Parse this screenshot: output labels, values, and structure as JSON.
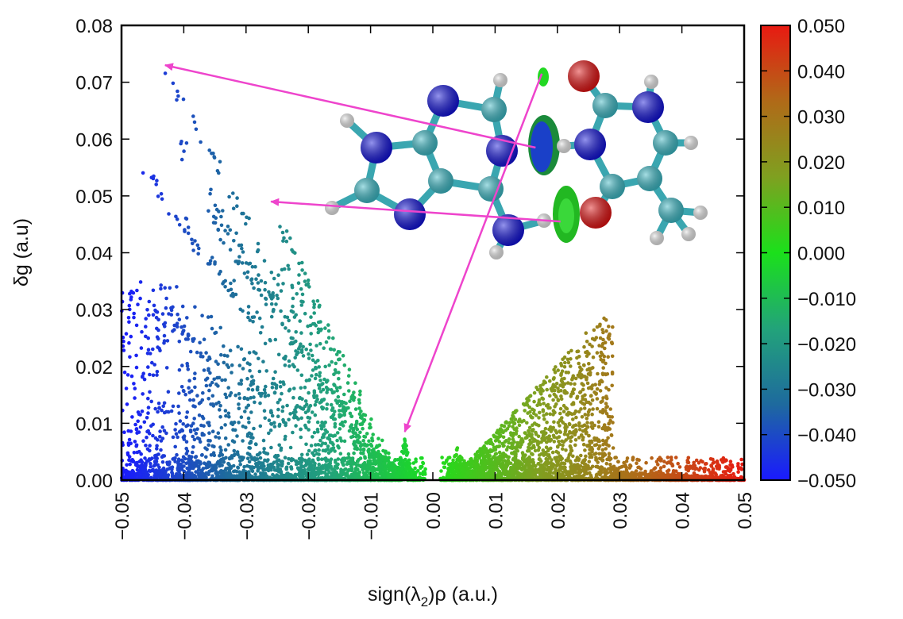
{
  "chart_data": {
    "type": "scatter",
    "title": "",
    "xlabel_prefix": "sign(λ",
    "xlabel_sub": "2",
    "xlabel_suffix": ")ρ (a.u.)",
    "ylabel": "δg (a.u)",
    "xlim": [
      -0.05,
      0.05
    ],
    "ylim": [
      0,
      0.08
    ],
    "x_ticks": [
      "−0.05",
      "−0.04",
      "−0.03",
      "−0.02",
      "−0.01",
      "0.00",
      "0.01",
      "0.02",
      "0.03",
      "0.04",
      "0.05"
    ],
    "x_tick_values": [
      -0.05,
      -0.04,
      -0.03,
      -0.02,
      -0.01,
      0.0,
      0.01,
      0.02,
      0.03,
      0.04,
      0.05
    ],
    "y_ticks": [
      "0.00",
      "0.01",
      "0.02",
      "0.03",
      "0.04",
      "0.05",
      "0.06",
      "0.07",
      "0.08"
    ],
    "y_tick_values": [
      0.0,
      0.01,
      0.02,
      0.03,
      0.04,
      0.05,
      0.06,
      0.07,
      0.08
    ],
    "colorbar": {
      "range": [
        -0.05,
        0.05
      ],
      "tick_values": [
        0.05,
        0.04,
        0.03,
        0.02,
        0.01,
        0.0,
        -0.01,
        -0.02,
        -0.03,
        -0.04,
        -0.05
      ],
      "ticks": [
        "0.050",
        "0.040",
        "0.030",
        "0.020",
        "0.010",
        "0.000",
        "−0.010",
        "−0.020",
        "−0.030",
        "−0.040",
        "−0.050"
      ],
      "colors": [
        "#1a1aff",
        "#1e6a9e",
        "#22a37a",
        "#1be01b",
        "#7fa020",
        "#b06a18",
        "#e81a12"
      ]
    },
    "spikes": [
      {
        "x": -0.043,
        "y": 0.073
      },
      {
        "x": -0.026,
        "y": 0.049
      },
      {
        "x": -0.0045,
        "y": 0.0075
      },
      {
        "x": 0.029,
        "y": 0.031
      },
      {
        "x": 0.018,
        "y": 0.02
      }
    ],
    "annotations": [
      {
        "from": [
          0.0165,
          0.0585
        ],
        "to": [
          -0.043,
          0.073
        ]
      },
      {
        "from": [
          0.0205,
          0.0455
        ],
        "to": [
          -0.026,
          0.049
        ]
      },
      {
        "from": [
          0.0175,
          0.0715
        ],
        "to": [
          -0.0045,
          0.0085
        ]
      }
    ],
    "arrow_color": "#ee44cc",
    "grid": false,
    "legend": "colorbar-right"
  },
  "molecule": {
    "atom_colors": {
      "C": "#3ab8c4",
      "N": "#1010d8",
      "O": "#e01010",
      "H": "#e6e6e6"
    },
    "isosurface_colors": [
      "#1a40c8",
      "#22d822"
    ]
  }
}
